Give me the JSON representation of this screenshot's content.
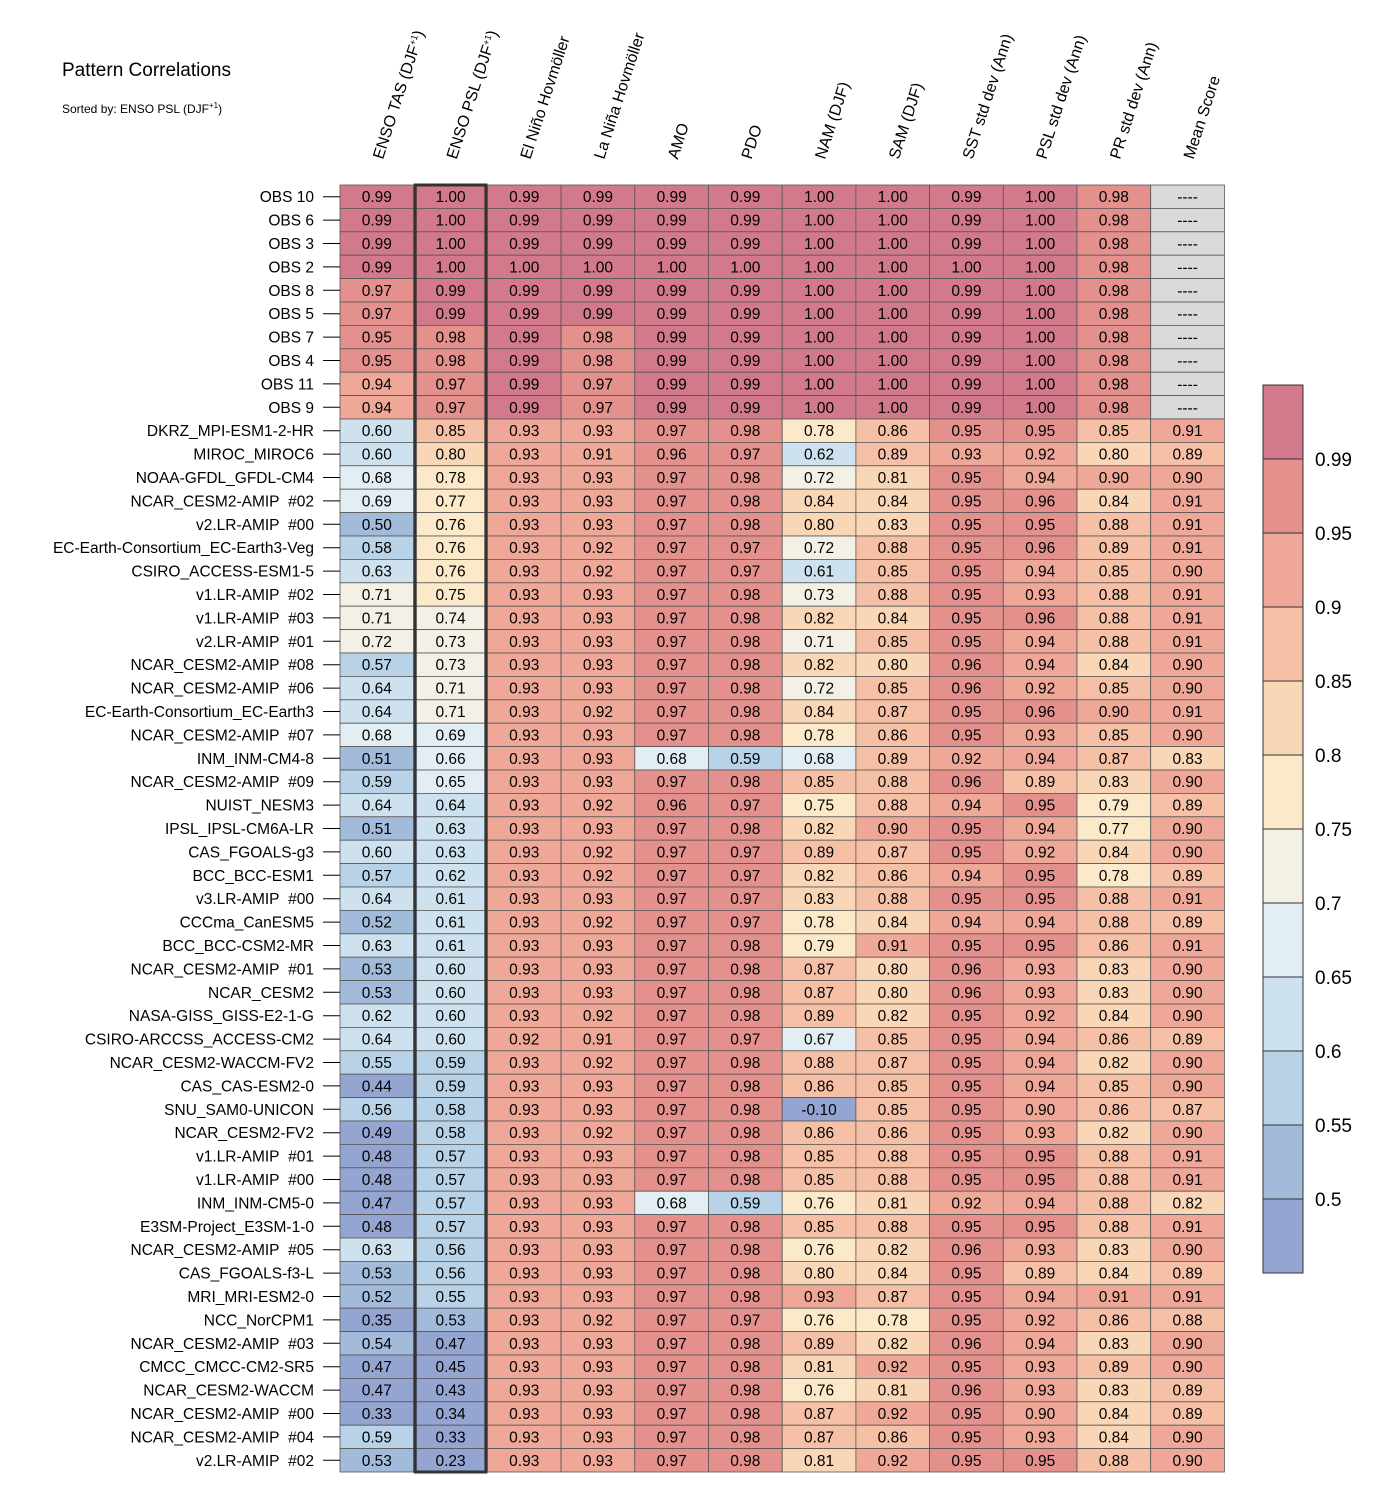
{
  "title": "Pattern Correlations",
  "subtitle": "Sorted by: ENSO PSL (DJF+1)",
  "chart_data": {
    "type": "heatmap",
    "sorted_by": "ENSO PSL (DJF+1)",
    "highlighted_column": "ENSO PSL (DJF+1)",
    "columns": [
      "ENSO TAS (DJF+1)",
      "ENSO PSL (DJF+1)",
      "El Niño Hovmöller",
      "La Niña Hovmöller",
      "AMO",
      "PDO",
      "NAM (DJF)",
      "SAM (DJF)",
      "SST std dev (Ann)",
      "PSL std dev (Ann)",
      "PR std dev (Ann)",
      "Mean Score"
    ],
    "missing_label": "----",
    "missing_color": "#d9d9d9",
    "colorbar": {
      "ticks": [
        0.99,
        0.95,
        0.9,
        0.85,
        0.8,
        0.75,
        0.7,
        0.65,
        0.6,
        0.55,
        0.5
      ],
      "tick_labels": [
        "0.99",
        "0.95",
        "0.9",
        "0.85",
        "0.8",
        "0.75",
        "0.7",
        "0.65",
        "0.6",
        "0.55",
        "0.5"
      ],
      "colors_top_to_bottom": [
        "#d27a8c",
        "#e4918e",
        "#efa798",
        "#f5c0a6",
        "#f9d6b5",
        "#fbe9c9",
        "#f3f1e6",
        "#e2eef3",
        "#cde2ee",
        "#b8d3e7",
        "#a2bbda",
        "#95a5d2"
      ]
    },
    "rows": [
      {
        "name": "OBS 10",
        "values": [
          "0.99",
          "1.00",
          "0.99",
          "0.99",
          "0.99",
          "0.99",
          "1.00",
          "1.00",
          "0.99",
          "1.00",
          "0.98",
          "----"
        ]
      },
      {
        "name": "OBS 6",
        "values": [
          "0.99",
          "1.00",
          "0.99",
          "0.99",
          "0.99",
          "0.99",
          "1.00",
          "1.00",
          "0.99",
          "1.00",
          "0.98",
          "----"
        ]
      },
      {
        "name": "OBS 3",
        "values": [
          "0.99",
          "1.00",
          "0.99",
          "0.99",
          "0.99",
          "0.99",
          "1.00",
          "1.00",
          "0.99",
          "1.00",
          "0.98",
          "----"
        ]
      },
      {
        "name": "OBS 2",
        "values": [
          "0.99",
          "1.00",
          "1.00",
          "1.00",
          "1.00",
          "1.00",
          "1.00",
          "1.00",
          "1.00",
          "1.00",
          "0.98",
          "----"
        ]
      },
      {
        "name": "OBS 8",
        "values": [
          "0.97",
          "0.99",
          "0.99",
          "0.99",
          "0.99",
          "0.99",
          "1.00",
          "1.00",
          "0.99",
          "1.00",
          "0.98",
          "----"
        ]
      },
      {
        "name": "OBS 5",
        "values": [
          "0.97",
          "0.99",
          "0.99",
          "0.99",
          "0.99",
          "0.99",
          "1.00",
          "1.00",
          "0.99",
          "1.00",
          "0.98",
          "----"
        ]
      },
      {
        "name": "OBS 7",
        "values": [
          "0.95",
          "0.98",
          "0.99",
          "0.98",
          "0.99",
          "0.99",
          "1.00",
          "1.00",
          "0.99",
          "1.00",
          "0.98",
          "----"
        ]
      },
      {
        "name": "OBS 4",
        "values": [
          "0.95",
          "0.98",
          "0.99",
          "0.98",
          "0.99",
          "0.99",
          "1.00",
          "1.00",
          "0.99",
          "1.00",
          "0.98",
          "----"
        ]
      },
      {
        "name": "OBS 11",
        "values": [
          "0.94",
          "0.97",
          "0.99",
          "0.97",
          "0.99",
          "0.99",
          "1.00",
          "1.00",
          "0.99",
          "1.00",
          "0.98",
          "----"
        ]
      },
      {
        "name": "OBS 9",
        "values": [
          "0.94",
          "0.97",
          "0.99",
          "0.97",
          "0.99",
          "0.99",
          "1.00",
          "1.00",
          "0.99",
          "1.00",
          "0.98",
          "----"
        ]
      },
      {
        "name": "DKRZ_MPI-ESM1-2-HR",
        "values": [
          "0.60",
          "0.85",
          "0.93",
          "0.93",
          "0.97",
          "0.98",
          "0.78",
          "0.86",
          "0.95",
          "0.95",
          "0.85",
          "0.91"
        ]
      },
      {
        "name": "MIROC_MIROC6",
        "values": [
          "0.60",
          "0.80",
          "0.93",
          "0.91",
          "0.96",
          "0.97",
          "0.62",
          "0.89",
          "0.93",
          "0.92",
          "0.80",
          "0.89"
        ]
      },
      {
        "name": "NOAA-GFDL_GFDL-CM4",
        "values": [
          "0.68",
          "0.78",
          "0.93",
          "0.93",
          "0.97",
          "0.98",
          "0.72",
          "0.81",
          "0.95",
          "0.94",
          "0.90",
          "0.90"
        ]
      },
      {
        "name": "NCAR_CESM2-AMIP  #02",
        "values": [
          "0.69",
          "0.77",
          "0.93",
          "0.93",
          "0.97",
          "0.98",
          "0.84",
          "0.84",
          "0.95",
          "0.96",
          "0.84",
          "0.91"
        ]
      },
      {
        "name": "v2.LR-AMIP  #00",
        "values": [
          "0.50",
          "0.76",
          "0.93",
          "0.93",
          "0.97",
          "0.98",
          "0.80",
          "0.83",
          "0.95",
          "0.95",
          "0.88",
          "0.91"
        ]
      },
      {
        "name": "EC-Earth-Consortium_EC-Earth3-Veg",
        "values": [
          "0.58",
          "0.76",
          "0.93",
          "0.92",
          "0.97",
          "0.97",
          "0.72",
          "0.88",
          "0.95",
          "0.96",
          "0.89",
          "0.91"
        ]
      },
      {
        "name": "CSIRO_ACCESS-ESM1-5",
        "values": [
          "0.63",
          "0.76",
          "0.93",
          "0.92",
          "0.97",
          "0.97",
          "0.61",
          "0.85",
          "0.95",
          "0.94",
          "0.85",
          "0.90"
        ]
      },
      {
        "name": "v1.LR-AMIP  #02",
        "values": [
          "0.71",
          "0.75",
          "0.93",
          "0.93",
          "0.97",
          "0.98",
          "0.73",
          "0.88",
          "0.95",
          "0.93",
          "0.88",
          "0.91"
        ]
      },
      {
        "name": "v1.LR-AMIP  #03",
        "values": [
          "0.71",
          "0.74",
          "0.93",
          "0.93",
          "0.97",
          "0.98",
          "0.82",
          "0.84",
          "0.95",
          "0.96",
          "0.88",
          "0.91"
        ]
      },
      {
        "name": "v2.LR-AMIP  #01",
        "values": [
          "0.72",
          "0.73",
          "0.93",
          "0.93",
          "0.97",
          "0.98",
          "0.71",
          "0.85",
          "0.95",
          "0.94",
          "0.88",
          "0.91"
        ]
      },
      {
        "name": "NCAR_CESM2-AMIP  #08",
        "values": [
          "0.57",
          "0.73",
          "0.93",
          "0.93",
          "0.97",
          "0.98",
          "0.82",
          "0.80",
          "0.96",
          "0.94",
          "0.84",
          "0.90"
        ]
      },
      {
        "name": "NCAR_CESM2-AMIP  #06",
        "values": [
          "0.64",
          "0.71",
          "0.93",
          "0.93",
          "0.97",
          "0.98",
          "0.72",
          "0.85",
          "0.96",
          "0.92",
          "0.85",
          "0.90"
        ]
      },
      {
        "name": "EC-Earth-Consortium_EC-Earth3",
        "values": [
          "0.64",
          "0.71",
          "0.93",
          "0.92",
          "0.97",
          "0.98",
          "0.84",
          "0.87",
          "0.95",
          "0.96",
          "0.90",
          "0.91"
        ]
      },
      {
        "name": "NCAR_CESM2-AMIP  #07",
        "values": [
          "0.68",
          "0.69",
          "0.93",
          "0.93",
          "0.97",
          "0.98",
          "0.78",
          "0.86",
          "0.95",
          "0.93",
          "0.85",
          "0.90"
        ]
      },
      {
        "name": "INM_INM-CM4-8",
        "values": [
          "0.51",
          "0.66",
          "0.93",
          "0.93",
          "0.68",
          "0.59",
          "0.68",
          "0.89",
          "0.92",
          "0.94",
          "0.87",
          "0.83"
        ]
      },
      {
        "name": "NCAR_CESM2-AMIP  #09",
        "values": [
          "0.59",
          "0.65",
          "0.93",
          "0.93",
          "0.97",
          "0.98",
          "0.85",
          "0.88",
          "0.96",
          "0.89",
          "0.83",
          "0.90"
        ]
      },
      {
        "name": "NUIST_NESM3",
        "values": [
          "0.64",
          "0.64",
          "0.93",
          "0.92",
          "0.96",
          "0.97",
          "0.75",
          "0.88",
          "0.94",
          "0.95",
          "0.79",
          "0.89"
        ]
      },
      {
        "name": "IPSL_IPSL-CM6A-LR",
        "values": [
          "0.51",
          "0.63",
          "0.93",
          "0.93",
          "0.97",
          "0.98",
          "0.82",
          "0.90",
          "0.95",
          "0.94",
          "0.77",
          "0.90"
        ]
      },
      {
        "name": "CAS_FGOALS-g3",
        "values": [
          "0.60",
          "0.63",
          "0.93",
          "0.92",
          "0.97",
          "0.97",
          "0.89",
          "0.87",
          "0.95",
          "0.92",
          "0.84",
          "0.90"
        ]
      },
      {
        "name": "BCC_BCC-ESM1",
        "values": [
          "0.57",
          "0.62",
          "0.93",
          "0.92",
          "0.97",
          "0.97",
          "0.82",
          "0.86",
          "0.94",
          "0.95",
          "0.78",
          "0.89"
        ]
      },
      {
        "name": "v3.LR-AMIP  #00",
        "values": [
          "0.64",
          "0.61",
          "0.93",
          "0.93",
          "0.97",
          "0.97",
          "0.83",
          "0.88",
          "0.95",
          "0.95",
          "0.88",
          "0.91"
        ]
      },
      {
        "name": "CCCma_CanESM5",
        "values": [
          "0.52",
          "0.61",
          "0.93",
          "0.92",
          "0.97",
          "0.97",
          "0.78",
          "0.84",
          "0.94",
          "0.94",
          "0.88",
          "0.89"
        ]
      },
      {
        "name": "BCC_BCC-CSM2-MR",
        "values": [
          "0.63",
          "0.61",
          "0.93",
          "0.93",
          "0.97",
          "0.98",
          "0.79",
          "0.91",
          "0.95",
          "0.95",
          "0.86",
          "0.91"
        ]
      },
      {
        "name": "NCAR_CESM2-AMIP  #01",
        "values": [
          "0.53",
          "0.60",
          "0.93",
          "0.93",
          "0.97",
          "0.98",
          "0.87",
          "0.80",
          "0.96",
          "0.93",
          "0.83",
          "0.90"
        ]
      },
      {
        "name": "NCAR_CESM2",
        "values": [
          "0.53",
          "0.60",
          "0.93",
          "0.93",
          "0.97",
          "0.98",
          "0.87",
          "0.80",
          "0.96",
          "0.93",
          "0.83",
          "0.90"
        ]
      },
      {
        "name": "NASA-GISS_GISS-E2-1-G",
        "values": [
          "0.62",
          "0.60",
          "0.93",
          "0.92",
          "0.97",
          "0.98",
          "0.89",
          "0.82",
          "0.95",
          "0.92",
          "0.84",
          "0.90"
        ]
      },
      {
        "name": "CSIRO-ARCCSS_ACCESS-CM2",
        "values": [
          "0.64",
          "0.60",
          "0.92",
          "0.91",
          "0.97",
          "0.97",
          "0.67",
          "0.85",
          "0.95",
          "0.94",
          "0.86",
          "0.89"
        ]
      },
      {
        "name": "NCAR_CESM2-WACCM-FV2",
        "values": [
          "0.55",
          "0.59",
          "0.93",
          "0.92",
          "0.97",
          "0.98",
          "0.88",
          "0.87",
          "0.95",
          "0.94",
          "0.82",
          "0.90"
        ]
      },
      {
        "name": "CAS_CAS-ESM2-0",
        "values": [
          "0.44",
          "0.59",
          "0.93",
          "0.93",
          "0.97",
          "0.98",
          "0.86",
          "0.85",
          "0.95",
          "0.94",
          "0.85",
          "0.90"
        ]
      },
      {
        "name": "SNU_SAM0-UNICON",
        "values": [
          "0.56",
          "0.58",
          "0.93",
          "0.93",
          "0.97",
          "0.98",
          "-0.10",
          "0.85",
          "0.95",
          "0.90",
          "0.86",
          "0.87"
        ]
      },
      {
        "name": "NCAR_CESM2-FV2",
        "values": [
          "0.49",
          "0.58",
          "0.93",
          "0.92",
          "0.97",
          "0.98",
          "0.86",
          "0.86",
          "0.95",
          "0.93",
          "0.82",
          "0.90"
        ]
      },
      {
        "name": "v1.LR-AMIP  #01",
        "values": [
          "0.48",
          "0.57",
          "0.93",
          "0.93",
          "0.97",
          "0.98",
          "0.85",
          "0.88",
          "0.95",
          "0.95",
          "0.88",
          "0.91"
        ]
      },
      {
        "name": "v1.LR-AMIP  #00",
        "values": [
          "0.48",
          "0.57",
          "0.93",
          "0.93",
          "0.97",
          "0.98",
          "0.85",
          "0.88",
          "0.95",
          "0.95",
          "0.88",
          "0.91"
        ]
      },
      {
        "name": "INM_INM-CM5-0",
        "values": [
          "0.47",
          "0.57",
          "0.93",
          "0.93",
          "0.68",
          "0.59",
          "0.76",
          "0.81",
          "0.92",
          "0.94",
          "0.88",
          "0.82"
        ]
      },
      {
        "name": "E3SM-Project_E3SM-1-0",
        "values": [
          "0.48",
          "0.57",
          "0.93",
          "0.93",
          "0.97",
          "0.98",
          "0.85",
          "0.88",
          "0.95",
          "0.95",
          "0.88",
          "0.91"
        ]
      },
      {
        "name": "NCAR_CESM2-AMIP  #05",
        "values": [
          "0.63",
          "0.56",
          "0.93",
          "0.93",
          "0.97",
          "0.98",
          "0.76",
          "0.82",
          "0.96",
          "0.93",
          "0.83",
          "0.90"
        ]
      },
      {
        "name": "CAS_FGOALS-f3-L",
        "values": [
          "0.53",
          "0.56",
          "0.93",
          "0.93",
          "0.97",
          "0.98",
          "0.80",
          "0.84",
          "0.95",
          "0.89",
          "0.84",
          "0.89"
        ]
      },
      {
        "name": "MRI_MRI-ESM2-0",
        "values": [
          "0.52",
          "0.55",
          "0.93",
          "0.93",
          "0.97",
          "0.98",
          "0.93",
          "0.87",
          "0.95",
          "0.94",
          "0.91",
          "0.91"
        ]
      },
      {
        "name": "NCC_NorCPM1",
        "values": [
          "0.35",
          "0.53",
          "0.93",
          "0.92",
          "0.97",
          "0.97",
          "0.76",
          "0.78",
          "0.95",
          "0.92",
          "0.86",
          "0.88"
        ]
      },
      {
        "name": "NCAR_CESM2-AMIP  #03",
        "values": [
          "0.54",
          "0.47",
          "0.93",
          "0.93",
          "0.97",
          "0.98",
          "0.89",
          "0.82",
          "0.96",
          "0.94",
          "0.83",
          "0.90"
        ]
      },
      {
        "name": "CMCC_CMCC-CM2-SR5",
        "values": [
          "0.47",
          "0.45",
          "0.93",
          "0.93",
          "0.97",
          "0.98",
          "0.81",
          "0.92",
          "0.95",
          "0.93",
          "0.89",
          "0.90"
        ]
      },
      {
        "name": "NCAR_CESM2-WACCM",
        "values": [
          "0.47",
          "0.43",
          "0.93",
          "0.93",
          "0.97",
          "0.98",
          "0.76",
          "0.81",
          "0.96",
          "0.93",
          "0.83",
          "0.89"
        ]
      },
      {
        "name": "NCAR_CESM2-AMIP  #00",
        "values": [
          "0.33",
          "0.34",
          "0.93",
          "0.93",
          "0.97",
          "0.98",
          "0.87",
          "0.92",
          "0.95",
          "0.90",
          "0.84",
          "0.89"
        ]
      },
      {
        "name": "NCAR_CESM2-AMIP  #04",
        "values": [
          "0.59",
          "0.33",
          "0.93",
          "0.93",
          "0.97",
          "0.98",
          "0.87",
          "0.86",
          "0.95",
          "0.93",
          "0.84",
          "0.90"
        ]
      },
      {
        "name": "v2.LR-AMIP  #02",
        "values": [
          "0.53",
          "0.23",
          "0.93",
          "0.93",
          "0.97",
          "0.98",
          "0.81",
          "0.92",
          "0.95",
          "0.95",
          "0.88",
          "0.90"
        ]
      }
    ]
  }
}
